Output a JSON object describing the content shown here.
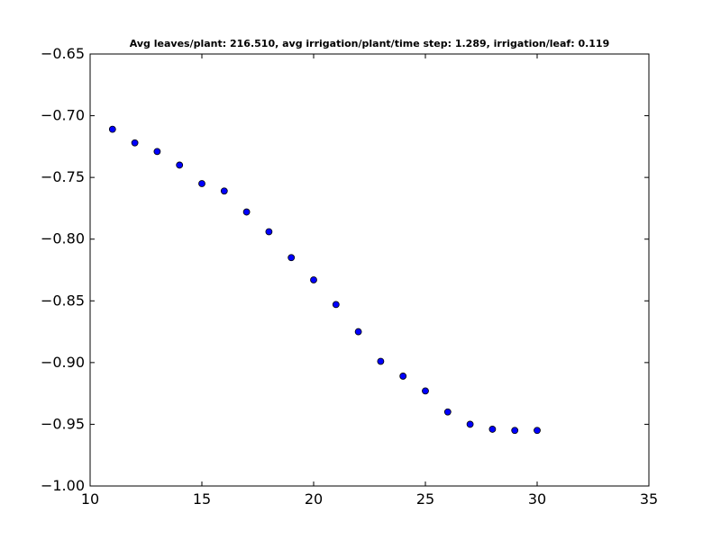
{
  "chart_data": {
    "type": "scatter",
    "title": "Avg leaves/plant: 216.510, avg irrigation/plant/time step: 1.289, irrigation/leaf: 0.119",
    "xlabel": "",
    "ylabel": "",
    "xlim": [
      10,
      35
    ],
    "ylim": [
      -1.0,
      -0.65
    ],
    "x_ticks": [
      "10",
      "15",
      "20",
      "25",
      "30",
      "35"
    ],
    "y_ticks": [
      "−0.65",
      "−0.70",
      "−0.75",
      "−0.80",
      "−0.85",
      "−0.90",
      "−0.95",
      "−1.00"
    ],
    "grid": false,
    "legend": "none",
    "marker_color": "#0000ff",
    "marker_edge_color": "#000000",
    "x": [
      11,
      12,
      13,
      14,
      15,
      16,
      17,
      18,
      19,
      20,
      21,
      22,
      23,
      24,
      25,
      26,
      27,
      28,
      29,
      30
    ],
    "y": [
      -0.711,
      -0.722,
      -0.729,
      -0.74,
      -0.755,
      -0.761,
      -0.778,
      -0.794,
      -0.815,
      -0.833,
      -0.853,
      -0.875,
      -0.899,
      -0.911,
      -0.923,
      -0.94,
      -0.95,
      -0.954,
      -0.955,
      -0.955
    ]
  }
}
